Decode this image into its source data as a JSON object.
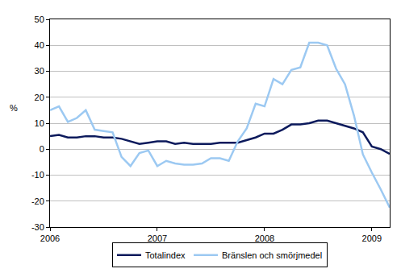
{
  "chart_data": {
    "type": "line",
    "categories": [
      "2006",
      null,
      null,
      null,
      null,
      null,
      null,
      null,
      null,
      null,
      null,
      null,
      "2007",
      null,
      null,
      null,
      null,
      null,
      null,
      null,
      null,
      null,
      null,
      null,
      "2008",
      null,
      null,
      null,
      null,
      null,
      null,
      null,
      null,
      null,
      null,
      null,
      "2009",
      null,
      null
    ],
    "ylabel": "%",
    "ylim": [
      -30,
      50
    ],
    "yticks": [
      -30,
      -20,
      -10,
      0,
      10,
      20,
      30,
      40,
      50
    ],
    "grid": true,
    "legend": "bottom",
    "series": [
      {
        "name": "Totalindex",
        "color": "#0c1a5c",
        "values": [
          5,
          5.5,
          4.5,
          4.5,
          5,
          5,
          4.5,
          4.5,
          4,
          3,
          2,
          2.5,
          3,
          3,
          2,
          2.5,
          2,
          2,
          2,
          2.5,
          2.5,
          2.5,
          3.5,
          4.5,
          6,
          6,
          7.5,
          9.5,
          9.5,
          10,
          11,
          11,
          10,
          9,
          8,
          6.5,
          1,
          0,
          -1.8
        ]
      },
      {
        "name": "Bränslen och smörjmedel",
        "color": "#9cc9f2",
        "values": [
          15,
          16.5,
          10.5,
          12,
          15,
          7.5,
          7,
          6.5,
          -3,
          -6.5,
          -1.5,
          -0.5,
          -6.5,
          -4.5,
          -5.5,
          -6,
          -6,
          -5.5,
          -3.5,
          -3.5,
          -4.5,
          3,
          8,
          17.5,
          16.5,
          27,
          25,
          30.5,
          31.5,
          41,
          41,
          40,
          31,
          25,
          13,
          -2,
          -9,
          -15.5,
          -22.5
        ]
      }
    ]
  }
}
